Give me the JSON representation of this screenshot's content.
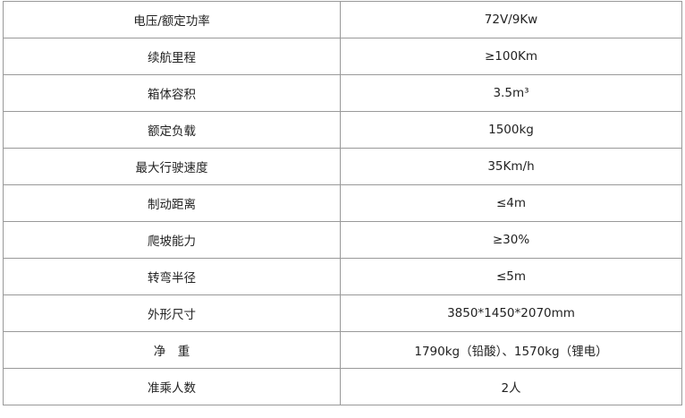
{
  "rows": [
    {
      "label": "电压/额定功率",
      "value": "72V/9Kw"
    },
    {
      "label": "续航里程",
      "value": "≥100Km"
    },
    {
      "label": "箱体容积",
      "value": "3.5m³"
    },
    {
      "label": "额定负载",
      "value": "1500kg"
    },
    {
      "label": "最大行驶速度",
      "value": "35Km/h"
    },
    {
      "label": "制动距离",
      "value": "≤4m"
    },
    {
      "label": "爬坡能力",
      "value": "≥30%"
    },
    {
      "label": "转弯半径",
      "value": "≤5m"
    },
    {
      "label": "外形尺寸",
      "value": "3850*1450*2070mm"
    },
    {
      "label": "净　重",
      "value": "1790kg（铅酸）、1570kg（锂电）"
    },
    {
      "label": "准乘人数",
      "value": "2人"
    }
  ]
}
